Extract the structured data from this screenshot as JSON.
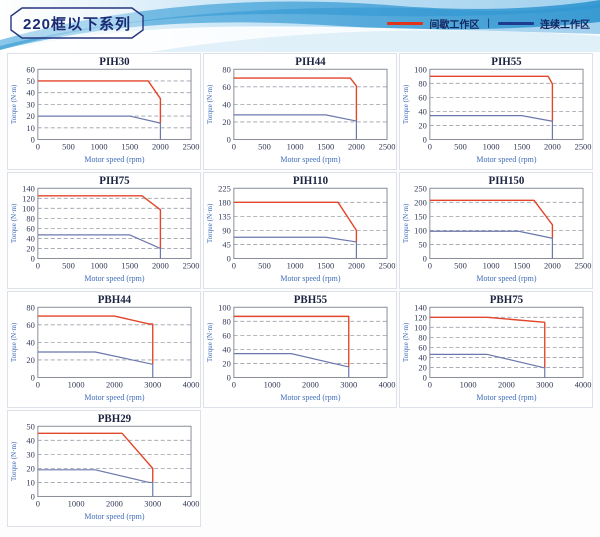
{
  "page": {
    "title_box": "220框以下系列"
  },
  "header": {
    "legend": {
      "items": [
        {
          "key": "intermittent",
          "label": "间歇工作区",
          "color": "#e2331b"
        },
        {
          "key": "continuous",
          "label": "连续工作区",
          "color": "#1f3b8d"
        }
      ],
      "separator": "|"
    }
  },
  "style": {
    "intermittent_curve_color": "#e2452a",
    "continuous_curve_color": "#6b78ad",
    "grid_line_color": "#9aa0aa",
    "frame_color": "#8a8f99",
    "tick_label_color": "#333a55",
    "axis_label_color": "#3e6cb8",
    "title_color": "#1b2440"
  },
  "chart_data": [
    {
      "type": "line",
      "title": "PIH30",
      "xlabel": "Motor speed (rpm)",
      "ylabel": "Torque (N·m)",
      "xlim": [
        0,
        2500
      ],
      "ylim": [
        0,
        60
      ],
      "xticks": [
        0,
        500,
        1000,
        1500,
        2000,
        2500
      ],
      "yticks": [
        0,
        10,
        20,
        30,
        40,
        50,
        60
      ],
      "series": [
        {
          "key": "intermittent",
          "name": "间歇工作区",
          "points": [
            [
              0,
              50
            ],
            [
              1800,
              50
            ],
            [
              2000,
              35
            ],
            [
              2000,
              13
            ]
          ]
        },
        {
          "key": "continuous",
          "name": "连续工作区",
          "points": [
            [
              0,
              20
            ],
            [
              1500,
              20
            ],
            [
              2000,
              14
            ],
            [
              2000,
              0
            ]
          ]
        }
      ]
    },
    {
      "type": "line",
      "title": "PIH44",
      "xlabel": "Motor speed (rpm)",
      "ylabel": "Torque (N·m)",
      "xlim": [
        0,
        2500
      ],
      "ylim": [
        0,
        80
      ],
      "xticks": [
        0,
        500,
        1000,
        1500,
        2000,
        2500
      ],
      "yticks": [
        0,
        20,
        40,
        60,
        80
      ],
      "series": [
        {
          "key": "intermittent",
          "name": "间歇工作区",
          "points": [
            [
              0,
              70
            ],
            [
              1900,
              70
            ],
            [
              2000,
              61
            ],
            [
              2000,
              21
            ]
          ]
        },
        {
          "key": "continuous",
          "name": "连续工作区",
          "points": [
            [
              0,
              28
            ],
            [
              1500,
              28
            ],
            [
              2000,
              21
            ],
            [
              2000,
              0
            ]
          ]
        }
      ]
    },
    {
      "type": "line",
      "title": "PIH55",
      "xlabel": "Motor speed (rpm)",
      "ylabel": "Torque (N·m)",
      "xlim": [
        0,
        2500
      ],
      "ylim": [
        0,
        100
      ],
      "xticks": [
        0,
        500,
        1000,
        1500,
        2000,
        2500
      ],
      "yticks": [
        0,
        20,
        40,
        60,
        80,
        100
      ],
      "series": [
        {
          "key": "intermittent",
          "name": "间歇工作区",
          "points": [
            [
              0,
              90
            ],
            [
              1930,
              90
            ],
            [
              2000,
              79
            ],
            [
              2000,
              26
            ]
          ]
        },
        {
          "key": "continuous",
          "name": "连续工作区",
          "points": [
            [
              0,
              34
            ],
            [
              1500,
              34
            ],
            [
              2000,
              26
            ],
            [
              2000,
              0
            ]
          ]
        }
      ]
    },
    {
      "type": "line",
      "title": "PIH75",
      "xlabel": "Motor speed (rpm)",
      "ylabel": "Torque (N·m)",
      "xlim": [
        0,
        2500
      ],
      "ylim": [
        0,
        140
      ],
      "xticks": [
        0,
        500,
        1000,
        1500,
        2000,
        2500
      ],
      "yticks": [
        0,
        20,
        40,
        60,
        80,
        100,
        120,
        140
      ],
      "series": [
        {
          "key": "intermittent",
          "name": "间歇工作区",
          "points": [
            [
              0,
              125
            ],
            [
              1700,
              125
            ],
            [
              2000,
              97
            ],
            [
              2000,
              20
            ]
          ]
        },
        {
          "key": "continuous",
          "name": "连续工作区",
          "points": [
            [
              0,
              47
            ],
            [
              1500,
              47
            ],
            [
              2000,
              20
            ],
            [
              2000,
              0
            ]
          ]
        }
      ]
    },
    {
      "type": "line",
      "title": "PIH110",
      "xlabel": "Motor speed (rpm)",
      "ylabel": "Torque (N·m)",
      "xlim": [
        0,
        2500
      ],
      "ylim": [
        0,
        225
      ],
      "xticks": [
        0,
        500,
        1000,
        1500,
        2000,
        2500
      ],
      "yticks": [
        0,
        45,
        90,
        135,
        180,
        225
      ],
      "series": [
        {
          "key": "intermittent",
          "name": "间歇工作区",
          "points": [
            [
              0,
              180
            ],
            [
              1700,
              180
            ],
            [
              2000,
              90
            ],
            [
              2000,
              53
            ]
          ]
        },
        {
          "key": "continuous",
          "name": "连续工作区",
          "points": [
            [
              0,
              68
            ],
            [
              1500,
              68
            ],
            [
              2000,
              53
            ],
            [
              2000,
              0
            ]
          ]
        }
      ]
    },
    {
      "type": "line",
      "title": "PIH150",
      "xlabel": "Motor speed (rpm)",
      "ylabel": "Torque (N·m)",
      "xlim": [
        0,
        2500
      ],
      "ylim": [
        0,
        250
      ],
      "xticks": [
        0,
        500,
        1000,
        1500,
        2000,
        2500
      ],
      "yticks": [
        0,
        50,
        100,
        150,
        200,
        250
      ],
      "series": [
        {
          "key": "intermittent",
          "name": "间歇工作区",
          "points": [
            [
              0,
              207
            ],
            [
              1700,
              207
            ],
            [
              2000,
              120
            ],
            [
              2000,
              72
            ]
          ]
        },
        {
          "key": "continuous",
          "name": "连续工作区",
          "points": [
            [
              0,
              97
            ],
            [
              1450,
              97
            ],
            [
              2000,
              72
            ],
            [
              2000,
              0
            ]
          ]
        }
      ]
    },
    {
      "type": "line",
      "title": "PBH44",
      "xlabel": "Motor speed (rpm)",
      "ylabel": "Torque (N·m)",
      "xlim": [
        0,
        4000
      ],
      "ylim": [
        0,
        80
      ],
      "xticks": [
        0,
        1000,
        2000,
        3000,
        4000
      ],
      "yticks": [
        0,
        20,
        40,
        60,
        80
      ],
      "series": [
        {
          "key": "intermittent",
          "name": "间歇工作区",
          "points": [
            [
              0,
              70
            ],
            [
              2000,
              70
            ],
            [
              2900,
              61
            ],
            [
              3000,
              61
            ],
            [
              3000,
              15
            ]
          ]
        },
        {
          "key": "continuous",
          "name": "连续工作区",
          "points": [
            [
              0,
              29
            ],
            [
              1500,
              29
            ],
            [
              3000,
              15
            ],
            [
              3000,
              0
            ]
          ]
        }
      ]
    },
    {
      "type": "line",
      "title": "PBH55",
      "xlabel": "Motor speed (rpm)",
      "ylabel": "Torque (N·m)",
      "xlim": [
        0,
        4000
      ],
      "ylim": [
        0,
        100
      ],
      "xticks": [
        0,
        1000,
        2000,
        3000,
        4000
      ],
      "yticks": [
        0,
        20,
        40,
        60,
        80,
        100
      ],
      "series": [
        {
          "key": "intermittent",
          "name": "间歇工作区",
          "points": [
            [
              0,
              87
            ],
            [
              3000,
              87
            ],
            [
              3000,
              15
            ]
          ]
        },
        {
          "key": "continuous",
          "name": "连续工作区",
          "points": [
            [
              0,
              34
            ],
            [
              1500,
              34
            ],
            [
              3000,
              15
            ],
            [
              3000,
              0
            ]
          ]
        }
      ]
    },
    {
      "type": "line",
      "title": "PBH75",
      "xlabel": "Motor speed (rpm)",
      "ylabel": "Torque (N·m)",
      "xlim": [
        0,
        4000
      ],
      "ylim": [
        0,
        140
      ],
      "xticks": [
        0,
        1000,
        2000,
        3000,
        4000
      ],
      "yticks": [
        0,
        20,
        40,
        60,
        80,
        100,
        120,
        140
      ],
      "series": [
        {
          "key": "intermittent",
          "name": "间歇工作区",
          "points": [
            [
              0,
              120
            ],
            [
              1500,
              120
            ],
            [
              3000,
              110
            ],
            [
              3000,
              19
            ]
          ]
        },
        {
          "key": "continuous",
          "name": "连续工作区",
          "points": [
            [
              0,
              46
            ],
            [
              1500,
              46
            ],
            [
              3000,
              19
            ],
            [
              3000,
              0
            ]
          ]
        }
      ]
    },
    {
      "type": "line",
      "title": "PBH29",
      "xlabel": "Motor speed (rpm)",
      "ylabel": "Torque (N·m)",
      "xlim": [
        0,
        4000
      ],
      "ylim": [
        0,
        50
      ],
      "xticks": [
        0,
        1000,
        2000,
        3000,
        4000
      ],
      "yticks": [
        0,
        10,
        20,
        30,
        40,
        50
      ],
      "series": [
        {
          "key": "intermittent",
          "name": "间歇工作区",
          "points": [
            [
              0,
              45
            ],
            [
              2200,
              45
            ],
            [
              3000,
              20
            ],
            [
              3000,
              10
            ]
          ]
        },
        {
          "key": "continuous",
          "name": "连续工作区",
          "points": [
            [
              0,
              19
            ],
            [
              1500,
              19
            ],
            [
              2900,
              10
            ],
            [
              3000,
              10
            ],
            [
              3000,
              0
            ]
          ]
        }
      ]
    }
  ]
}
